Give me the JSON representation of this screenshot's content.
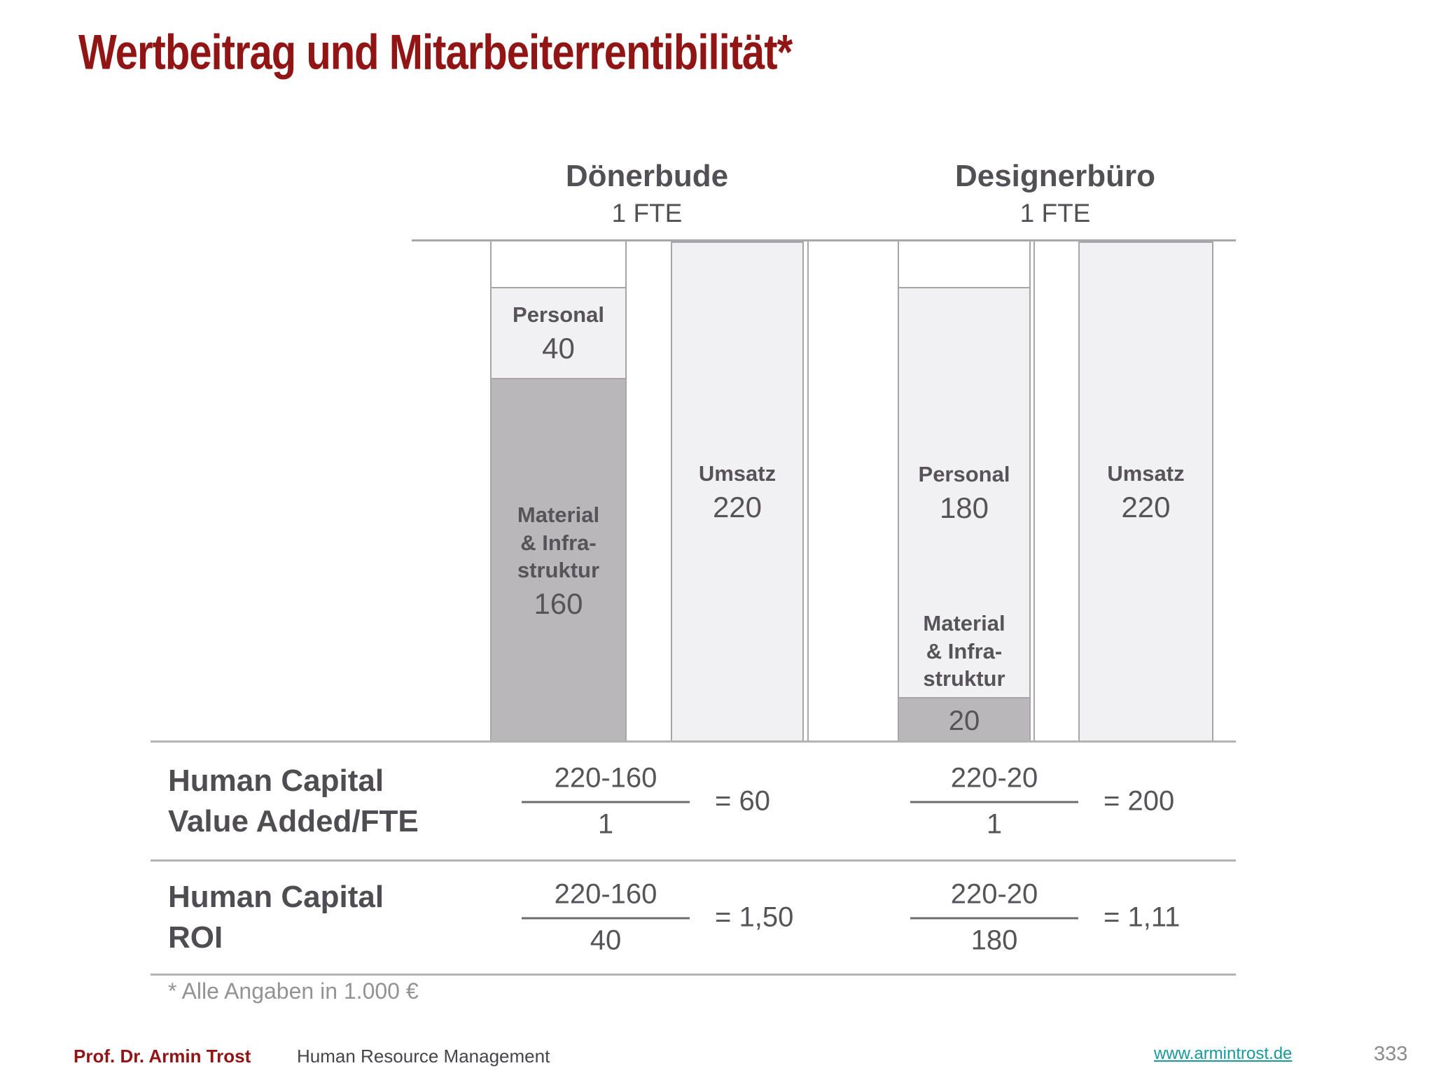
{
  "slide": {
    "title": "Wertbeitrag und Mitarbeiterrentibilität*"
  },
  "chart_data": {
    "type": "bar",
    "ylim": [
      0,
      220
    ],
    "footnote": "* Alle Angaben in 1.000 €",
    "groups": [
      {
        "name": "Dönerbude",
        "fte": "1 FTE",
        "cost_bar": {
          "segments": [
            {
              "label": "Personal",
              "value": 40
            },
            {
              "label_lines": [
                "Material",
                "& Infra-",
                "struktur"
              ],
              "value": 160
            }
          ]
        },
        "revenue_bar": {
          "label": "Umsatz",
          "value": 220
        }
      },
      {
        "name": "Designerbüro",
        "fte": "1 FTE",
        "cost_bar": {
          "segments": [
            {
              "label": "Personal",
              "value": 180
            },
            {
              "label_lines": [
                "Material",
                "& Infra-",
                "struktur"
              ],
              "value": 20
            }
          ]
        },
        "revenue_bar": {
          "label": "Umsatz",
          "value": 220
        }
      }
    ]
  },
  "table": {
    "rows": [
      {
        "label_lines": [
          "Human Capital",
          "Value Added/FTE"
        ],
        "formulas": [
          {
            "numerator": "220-160",
            "denominator": "1",
            "result": "= 60"
          },
          {
            "numerator": "220-20",
            "denominator": "1",
            "result": "= 200"
          }
        ]
      },
      {
        "label_lines": [
          "Human Capital",
          "ROI"
        ],
        "formulas": [
          {
            "numerator": "220-160",
            "denominator": "40",
            "result": "= 1,50"
          },
          {
            "numerator": "220-20",
            "denominator": "180",
            "result": "= 1,11"
          }
        ]
      }
    ]
  },
  "footer": {
    "author": "Prof. Dr. Armin Trost",
    "course": "Human Resource Management",
    "link": "www.armintrost.de",
    "page": "333"
  },
  "colors": {
    "accent_red": "#921515",
    "link_teal": "#19999e",
    "bar_light_fill": "#f1f0f2",
    "bar_dark_fill": "#b9b7ba",
    "line_gray": "#a9a7aa",
    "text_gray": "#565458"
  }
}
